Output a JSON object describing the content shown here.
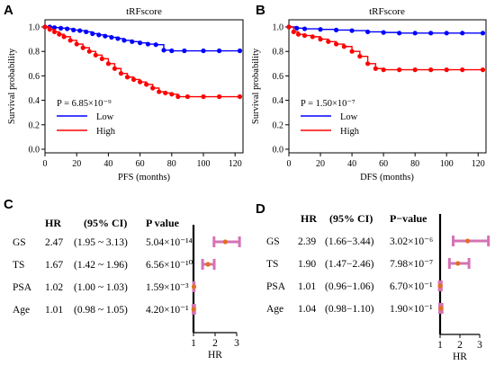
{
  "panels": {
    "A": "A",
    "B": "B",
    "C": "C",
    "D": "D"
  },
  "chart_data": [
    {
      "type": "line",
      "panel": "A",
      "title": "tRFscore",
      "xlabel": "PFS (months)",
      "ylabel": "Survival probability",
      "xlim": [
        0,
        125
      ],
      "ylim": [
        0,
        1.0
      ],
      "xticks": [
        "0",
        "20",
        "40",
        "60",
        "80",
        "100",
        "120"
      ],
      "yticks": [
        "0.0",
        "0.2",
        "0.4",
        "0.6",
        "0.8",
        "1.0"
      ],
      "annotation": "P = 6.85×10⁻⁹",
      "legend": {
        "placement": "bottom-left"
      },
      "series": [
        {
          "name": "Low",
          "color": "#0000ff",
          "x": [
            0,
            3,
            6,
            10,
            14,
            18,
            22,
            26,
            30,
            34,
            38,
            42,
            46,
            50,
            55,
            60,
            65,
            70,
            75,
            80,
            88,
            100,
            110,
            123
          ],
          "y": [
            1.0,
            1.0,
            0.995,
            0.99,
            0.985,
            0.975,
            0.97,
            0.96,
            0.945,
            0.935,
            0.925,
            0.915,
            0.905,
            0.89,
            0.88,
            0.87,
            0.86,
            0.855,
            0.81,
            0.805,
            0.805,
            0.805,
            0.805,
            0.805
          ]
        },
        {
          "name": "High",
          "color": "#ff0000",
          "x": [
            0,
            3,
            6,
            9,
            12,
            16,
            20,
            24,
            28,
            32,
            36,
            40,
            44,
            48,
            52,
            56,
            60,
            64,
            68,
            72,
            76,
            80,
            84,
            90,
            100,
            110,
            123
          ],
          "y": [
            1.0,
            0.98,
            0.96,
            0.94,
            0.92,
            0.89,
            0.86,
            0.83,
            0.8,
            0.77,
            0.74,
            0.7,
            0.66,
            0.62,
            0.59,
            0.57,
            0.55,
            0.53,
            0.5,
            0.47,
            0.46,
            0.45,
            0.43,
            0.43,
            0.43,
            0.43,
            0.43
          ]
        }
      ]
    },
    {
      "type": "line",
      "panel": "B",
      "title": "tRFscore",
      "xlabel": "DFS (months)",
      "ylabel": "Survival probability",
      "xlim": [
        0,
        125
      ],
      "ylim": [
        0,
        1.0
      ],
      "xticks": [
        "0",
        "20",
        "40",
        "60",
        "80",
        "100",
        "120"
      ],
      "yticks": [
        "0.0",
        "0.2",
        "0.4",
        "0.6",
        "0.8",
        "1.0"
      ],
      "annotation": "P = 1.50×10⁻⁷",
      "legend": {
        "placement": "bottom-left"
      },
      "series": [
        {
          "name": "Low",
          "color": "#0000ff",
          "x": [
            0,
            5,
            10,
            20,
            30,
            40,
            50,
            60,
            70,
            80,
            90,
            100,
            110,
            123
          ],
          "y": [
            1.0,
            0.99,
            0.985,
            0.98,
            0.975,
            0.97,
            0.96,
            0.955,
            0.95,
            0.95,
            0.95,
            0.95,
            0.95,
            0.95
          ]
        },
        {
          "name": "High",
          "color": "#ff0000",
          "x": [
            0,
            3,
            6,
            10,
            15,
            20,
            25,
            30,
            35,
            40,
            45,
            50,
            55,
            60,
            70,
            80,
            90,
            100,
            110,
            123
          ],
          "y": [
            1.0,
            0.96,
            0.94,
            0.93,
            0.92,
            0.9,
            0.88,
            0.86,
            0.84,
            0.8,
            0.76,
            0.7,
            0.66,
            0.65,
            0.65,
            0.65,
            0.65,
            0.65,
            0.65,
            0.65
          ]
        }
      ]
    },
    {
      "type": "table",
      "panel": "C",
      "headers": [
        "HR",
        "(95% CI)",
        "P value"
      ],
      "rows": [
        {
          "label": "GS",
          "hr": "2.47",
          "ci": "(1.95 ~ 3.13)",
          "p": "5.04×10⁻¹⁴",
          "hr_value": 2.47,
          "lo": 1.95,
          "hi": 3.13
        },
        {
          "label": "TS",
          "hr": "1.67",
          "ci": "(1.42 ~ 1.96)",
          "p": "6.56×10⁻¹⁰",
          "hr_value": 1.67,
          "lo": 1.42,
          "hi": 1.96
        },
        {
          "label": "PSA",
          "hr": "1.02",
          "ci": "(1.00 ~ 1.03)",
          "p": "1.59×10⁻³",
          "hr_value": 1.02,
          "lo": 1.0,
          "hi": 1.03
        },
        {
          "label": "Age",
          "hr": "1.01",
          "ci": "(0.98 ~ 1.05)",
          "p": "4.20×10⁻¹",
          "hr_value": 1.01,
          "lo": 0.98,
          "hi": 1.05
        }
      ],
      "xlabel": "HR",
      "xticks": [
        "1",
        "2",
        "3"
      ],
      "xlim": [
        1,
        3
      ]
    },
    {
      "type": "table",
      "panel": "D",
      "headers": [
        "HR",
        "(95% CI)",
        "P−value"
      ],
      "rows": [
        {
          "label": "GS",
          "hr": "2.39",
          "ci": "(1.66−3.44)",
          "p": "3.02×10⁻⁶",
          "hr_value": 2.39,
          "lo": 1.66,
          "hi": 3.44
        },
        {
          "label": "TS",
          "hr": "1.90",
          "ci": "(1.47−2.46)",
          "p": "7.98×10⁻⁷",
          "hr_value": 1.9,
          "lo": 1.47,
          "hi": 2.46
        },
        {
          "label": "PSA",
          "hr": "1.01",
          "ci": "(0.96−1.06)",
          "p": "6.70×10⁻¹",
          "hr_value": 1.01,
          "lo": 0.96,
          "hi": 1.06
        },
        {
          "label": "Age",
          "hr": "1.04",
          "ci": "(0.98−1.10)",
          "p": "1.90×10⁻¹",
          "hr_value": 1.04,
          "lo": 0.98,
          "hi": 1.1
        }
      ],
      "xlabel": "HR",
      "xticks": [
        "1",
        "2",
        "3"
      ],
      "xlim": [
        1,
        3
      ]
    }
  ],
  "colors": {
    "low": "#0000ff",
    "high": "#ff0000",
    "ci_bar": "#d473b4",
    "hr_point": "#e07020"
  }
}
